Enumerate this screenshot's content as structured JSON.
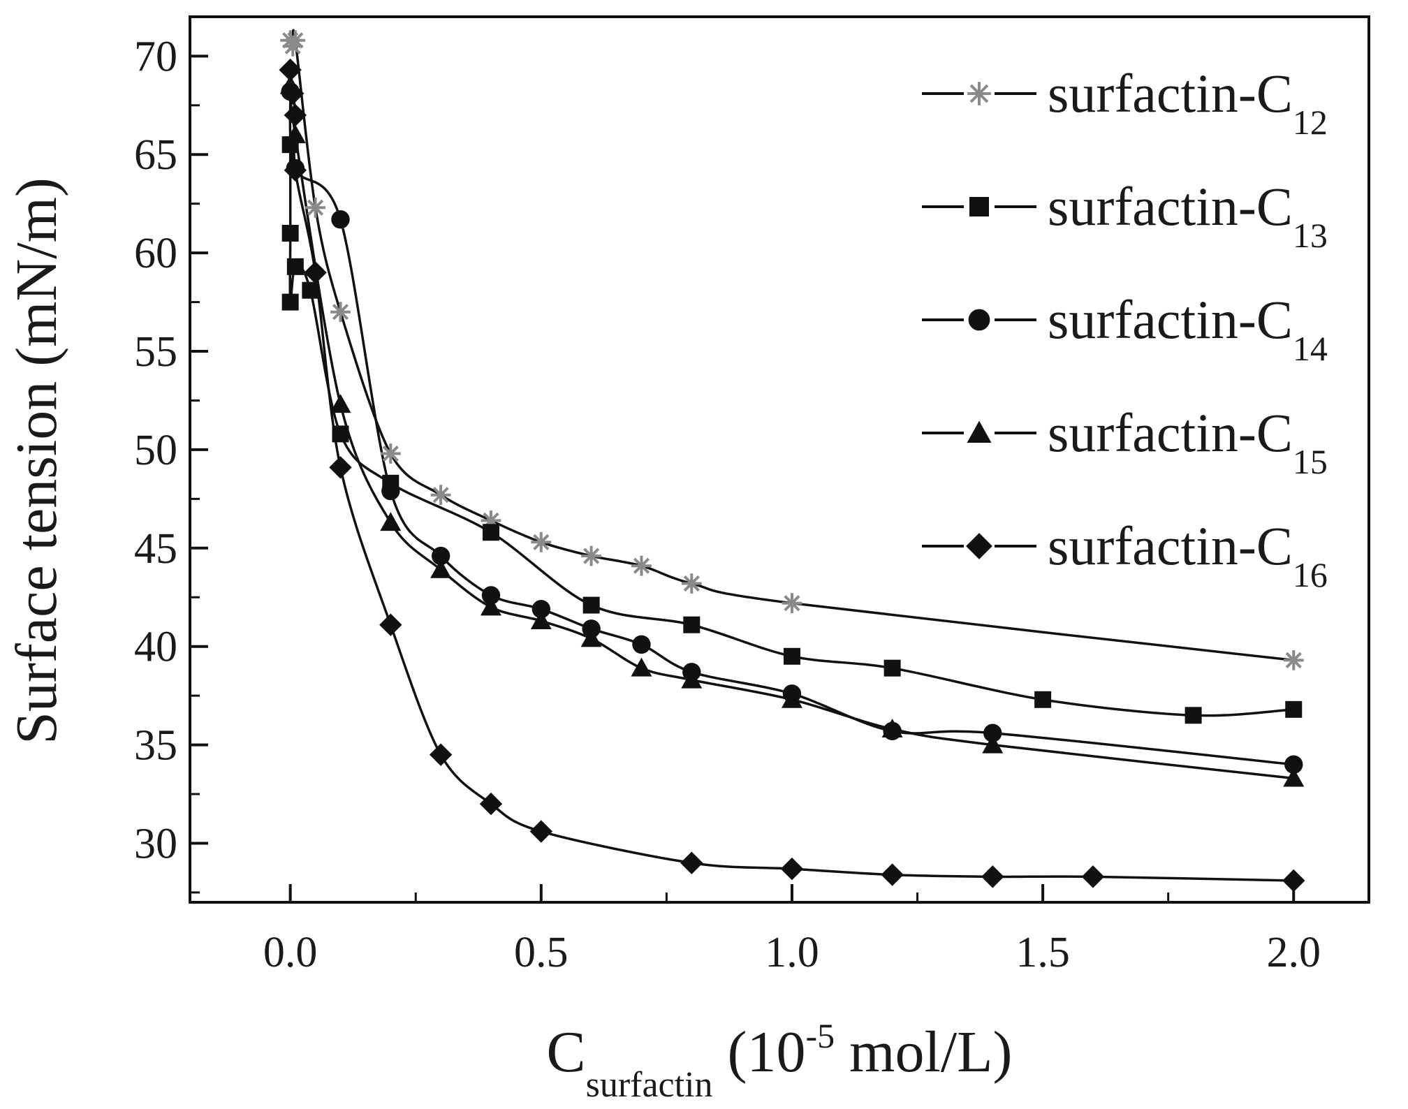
{
  "chart_data": {
    "type": "line",
    "title": "",
    "xlabel": {
      "main": "C",
      "sub": "surfactin",
      "rest": " (10",
      "sup": "-5",
      "unit": " mol/L)"
    },
    "ylabel": "Surface tension (mN/m)",
    "xlim": [
      -0.2,
      2.15
    ],
    "ylim": [
      27,
      72
    ],
    "xticks": [
      0.0,
      0.5,
      1.0,
      1.5,
      2.0
    ],
    "xtick_labels": [
      "0.0",
      "0.5",
      "1.0",
      "1.5",
      "2.0"
    ],
    "yticks": [
      30,
      35,
      40,
      45,
      50,
      55,
      60,
      65,
      70
    ],
    "ytick_labels": [
      "30",
      "35",
      "40",
      "45",
      "50",
      "55",
      "60",
      "65",
      "70"
    ],
    "grid": false,
    "legend_position": "top-right",
    "series": [
      {
        "name": "surfactin-C12",
        "label_main": "surfactin-C",
        "label_sub": "12",
        "marker": "asterisk",
        "color": "#8a8a8a",
        "x": [
          0.0,
          0.005,
          0.01,
          0.05,
          0.1,
          0.2,
          0.3,
          0.4,
          0.5,
          0.6,
          0.7,
          0.8,
          1.0,
          2.0
        ],
        "y": [
          70.8,
          70.5,
          70.8,
          62.3,
          57.0,
          49.8,
          47.7,
          46.4,
          45.3,
          44.6,
          44.1,
          43.2,
          42.2,
          39.3
        ]
      },
      {
        "name": "surfactin-C13",
        "label_main": "surfactin-C",
        "label_sub": "13",
        "marker": "square",
        "color": "#111111",
        "x": [
          0.0,
          0.0,
          0.0,
          0.01,
          0.04,
          0.1,
          0.2,
          0.4,
          0.6,
          0.8,
          1.0,
          1.2,
          1.5,
          1.8,
          2.0
        ],
        "y": [
          65.5,
          61.0,
          57.5,
          59.3,
          58.1,
          50.8,
          48.3,
          45.8,
          42.1,
          41.1,
          39.5,
          38.9,
          37.3,
          36.5,
          36.8
        ]
      },
      {
        "name": "surfactin-C14",
        "label_main": "surfactin-C",
        "label_sub": "14",
        "marker": "circle",
        "color": "#111111",
        "x": [
          0.0,
          0.01,
          0.1,
          0.2,
          0.3,
          0.4,
          0.5,
          0.6,
          0.7,
          0.8,
          1.0,
          1.2,
          1.4,
          2.0
        ],
        "y": [
          68.2,
          64.3,
          61.7,
          47.9,
          44.6,
          42.6,
          41.9,
          40.9,
          40.1,
          38.7,
          37.6,
          35.7,
          35.6,
          34.0
        ]
      },
      {
        "name": "surfactin-C15",
        "label_main": "surfactin-C",
        "label_sub": "15",
        "marker": "triangle",
        "color": "#111111",
        "x": [
          0.0,
          0.01,
          0.1,
          0.2,
          0.3,
          0.4,
          0.5,
          0.6,
          0.7,
          0.8,
          1.0,
          1.2,
          1.4,
          2.0
        ],
        "y": [
          68.5,
          66.0,
          52.3,
          46.3,
          43.9,
          42.0,
          41.3,
          40.4,
          38.9,
          38.3,
          37.3,
          35.8,
          35.0,
          33.3
        ]
      },
      {
        "name": "surfactin-C16",
        "label_main": "surfactin-C",
        "label_sub": "16",
        "marker": "diamond",
        "color": "#111111",
        "x": [
          0.0,
          0.005,
          0.01,
          0.01,
          0.05,
          0.1,
          0.2,
          0.3,
          0.4,
          0.5,
          0.8,
          1.0,
          1.2,
          1.4,
          1.6,
          2.0
        ],
        "y": [
          69.3,
          68.1,
          67.0,
          64.2,
          59.0,
          49.1,
          41.1,
          34.5,
          32.0,
          30.6,
          29.0,
          28.7,
          28.4,
          28.3,
          28.3,
          28.1
        ]
      }
    ]
  }
}
